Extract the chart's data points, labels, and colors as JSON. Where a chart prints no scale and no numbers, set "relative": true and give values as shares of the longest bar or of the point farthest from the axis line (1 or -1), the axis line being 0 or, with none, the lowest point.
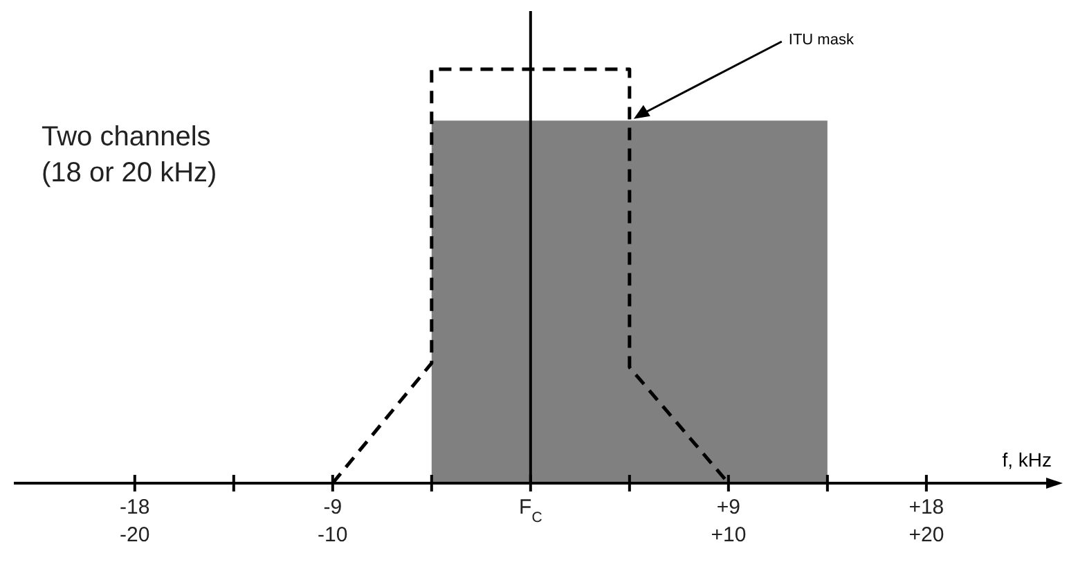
{
  "chart_data": {
    "type": "area",
    "relative": true,
    "xlabel": "f, kHz",
    "xlim": [
      -23.5,
      23.7
    ],
    "xticks": [
      -18,
      {
        "value": -13.5,
        "label": null
      },
      -9,
      {
        "value": -4.5,
        "label": null
      },
      {
        "value": 0,
        "label": "F$_{C}$"
      },
      {
        "value": 4.5,
        "label": null
      },
      {
        "value": 9,
        "label": "+9"
      },
      {
        "value": 13.5,
        "label": null
      },
      {
        "value": 18,
        "label": "+18"
      }
    ],
    "x2lim": [
      -26.11,
      26.33
    ],
    "x2ticks": [
      -20,
      -10,
      {
        "value": 10,
        "label": "+10"
      },
      {
        "value": 20,
        "label": "+20"
      }
    ],
    "series": [
      {
        "color": "#808080",
        "x": [
          -4.5,
          -4.5,
          13.5,
          13.5
        ],
        "values": [
          0,
          0.876,
          0.876,
          0
        ]
      },
      {
        "type": "line",
        "name": "ITU mask",
        "color": "#000000",
        "line_style": "dashed",
        "x": [
          -9,
          -4.5,
          -4.5,
          4.5,
          4.5,
          9
        ],
        "values": [
          0,
          0.29,
          1,
          1,
          0.28,
          0
        ]
      }
    ],
    "ref_lines": [
      {
        "axis": "x",
        "value": 0,
        "color": "#000000",
        "line_style": "solid"
      }
    ],
    "annotations": [
      "Two channels\n(18 or 20 kHz)"
    ]
  }
}
